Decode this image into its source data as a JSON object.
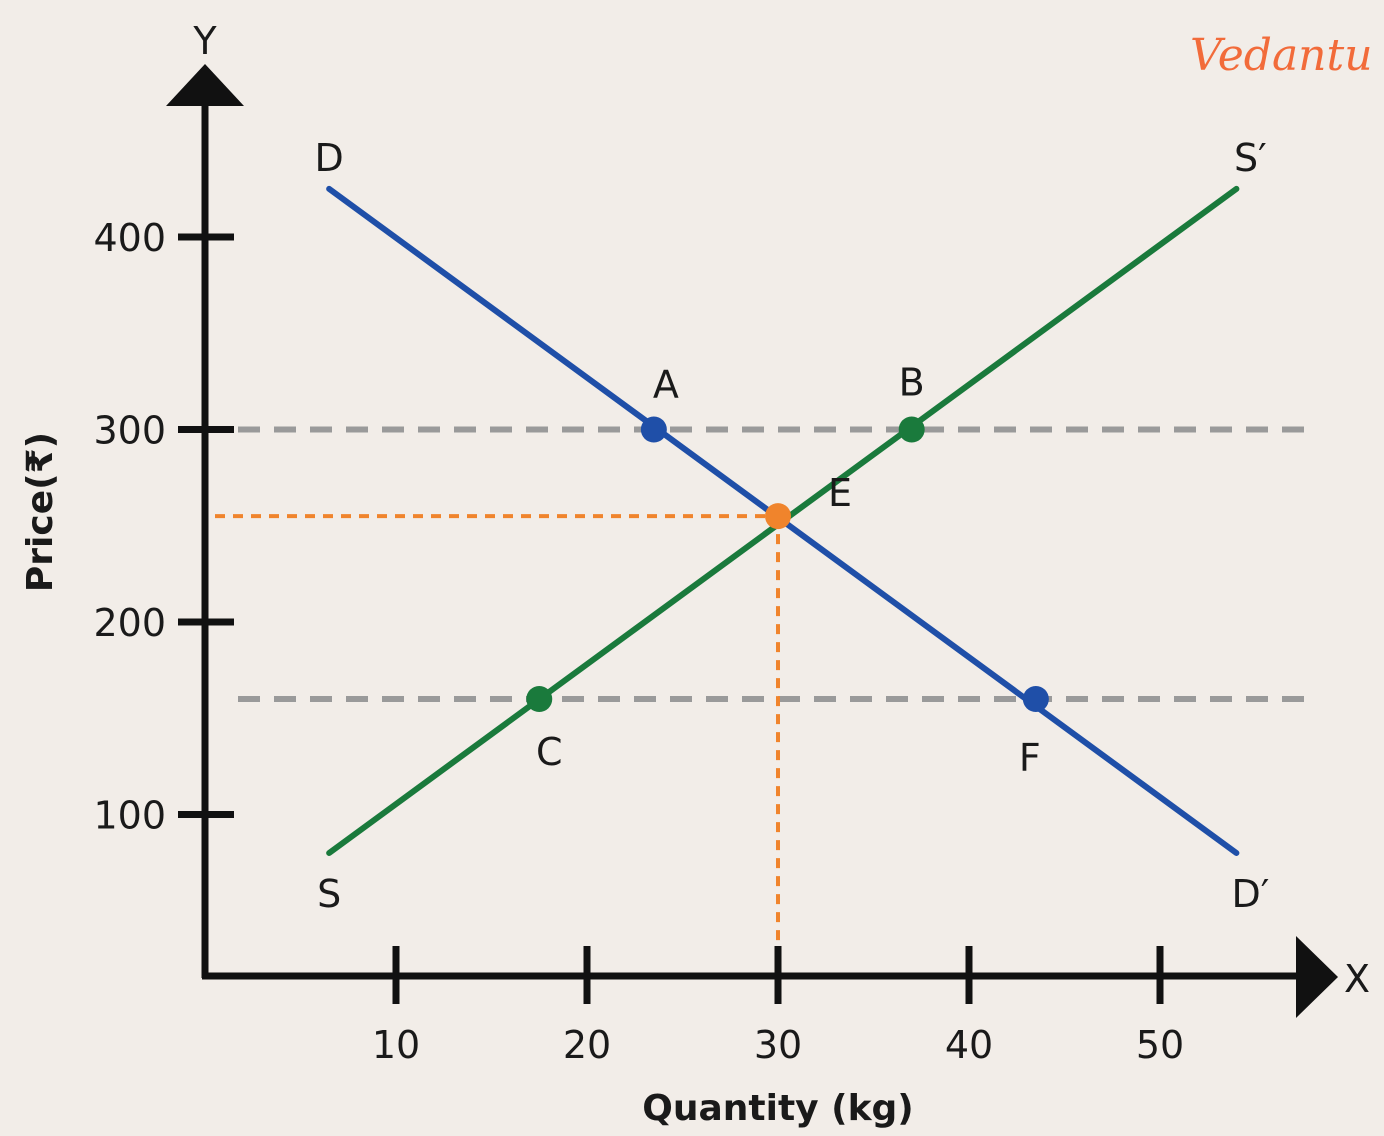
{
  "brand": {
    "name": "Vedantu",
    "color": "#f26b3a"
  },
  "chart_data": {
    "type": "line",
    "xlabel": "Quantity (kg)",
    "ylabel": "Price(₹)",
    "x_axis_letter": "X",
    "y_axis_letter": "Y",
    "xlim": [
      0,
      55
    ],
    "ylim": [
      0,
      460
    ],
    "x_ticks": [
      10,
      20,
      30,
      40,
      50
    ],
    "y_ticks": [
      100,
      200,
      300,
      400
    ],
    "grid": false,
    "series": [
      {
        "id": "demand",
        "color": "#1f4fa8",
        "start_label": "D",
        "end_label": "D′",
        "points": [
          [
            6.5,
            425
          ],
          [
            54,
            80
          ]
        ]
      },
      {
        "id": "supply",
        "color": "#1a7a3c",
        "start_label": "S",
        "end_label": "S′",
        "points": [
          [
            6.5,
            80
          ],
          [
            54,
            425
          ]
        ]
      }
    ],
    "reference_lines": [
      {
        "y": 300,
        "style": "dashed",
        "color": "#9a9a9a"
      },
      {
        "y": 160,
        "style": "dashed",
        "color": "#9a9a9a"
      }
    ],
    "equilibrium_guides": {
      "x": 30,
      "y": 255,
      "color": "#f0842c"
    },
    "points": [
      {
        "label": "A",
        "x": 23.5,
        "y": 300,
        "color": "#1f4fa8"
      },
      {
        "label": "B",
        "x": 37,
        "y": 300,
        "color": "#1a7a3c"
      },
      {
        "label": "C",
        "x": 17.5,
        "y": 160,
        "color": "#1a7a3c"
      },
      {
        "label": "F",
        "x": 43.5,
        "y": 160,
        "color": "#1f4fa8"
      },
      {
        "label": "E",
        "x": 30,
        "y": 255,
        "color": "#f0842c"
      }
    ]
  }
}
